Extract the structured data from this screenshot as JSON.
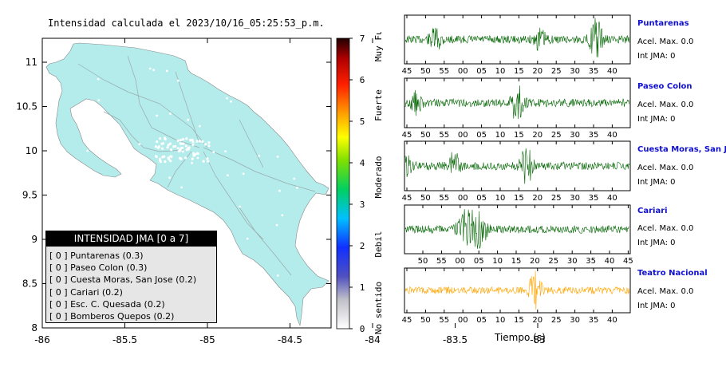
{
  "map": {
    "title": "Intensidad calculada el 2023/10/16_05:25:53_p.m.",
    "lat_ticks": [
      "11",
      "10.5",
      "10",
      "9.5",
      "9",
      "8.5",
      "8"
    ],
    "lon_ticks": [
      "-86",
      "-85.5",
      "-85",
      "-84.5",
      "-84",
      "-83.5",
      "-83"
    ],
    "land_color": "#b4ecec"
  },
  "legend": {
    "header": "INTENSIDAD JMA [0 a 7]",
    "items": [
      "[ 0 ] Puntarenas (0.3)",
      "[ 0 ] Paseo Colon (0.3)",
      "[ 0 ] Cuesta Moras, San Jose (0.2)",
      "[ 0 ] Cariari (0.2)",
      "[ 0 ] Esc. C. Quesada (0.2)",
      "[ 0 ] Bomberos Quepos (0.2)"
    ]
  },
  "scale": {
    "ticks": [
      "7",
      "6",
      "5",
      "4",
      "3",
      "2",
      "1",
      "0"
    ],
    "categories": [
      "Muy Fuerte",
      "Fuerte",
      "Moderado",
      "Debil",
      "No sentido"
    ]
  },
  "stations": [
    {
      "name": "Puntarenas",
      "acc": "Acel. Max. 0.0",
      "int": "Int JMA: 0",
      "color": "#006400",
      "ticks": [
        "45",
        "50",
        "55",
        "00",
        "05",
        "10",
        "15",
        "20",
        "25",
        "30",
        "35",
        "40"
      ]
    },
    {
      "name": "Paseo Colon",
      "acc": "Acel. Max. 0.0",
      "int": "Int JMA: 0",
      "color": "#006400",
      "ticks": [
        "45",
        "50",
        "55",
        "00",
        "05",
        "10",
        "15",
        "20",
        "25",
        "30",
        "35",
        "40"
      ]
    },
    {
      "name": "Cuesta Moras, San Jose",
      "acc": "Acel. Max. 0.0",
      "int": "Int JMA: 0",
      "color": "#006400",
      "ticks": [
        "45",
        "50",
        "55",
        "00",
        "05",
        "10",
        "15",
        "20",
        "25",
        "30",
        "35",
        "40"
      ]
    },
    {
      "name": "Cariari",
      "acc": "Acel. Max. 0.0",
      "int": "Int JMA: 0",
      "color": "#006400",
      "ticks": [
        "50",
        "55",
        "00",
        "05",
        "10",
        "15",
        "20",
        "25",
        "30",
        "35",
        "40",
        "45"
      ]
    },
    {
      "name": "Teatro Nacional",
      "acc": "Acel. Max. 0.0",
      "int": "Int JMA: 0",
      "color": "#ffa500",
      "ticks": [
        "45",
        "50",
        "55",
        "00",
        "05",
        "10",
        "15",
        "20",
        "25",
        "30",
        "35",
        "40"
      ]
    }
  ],
  "time_axis_label": "Tiempo (s)"
}
